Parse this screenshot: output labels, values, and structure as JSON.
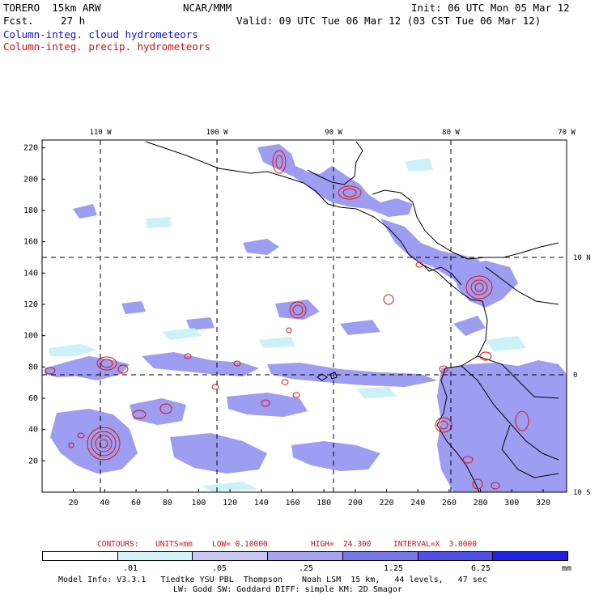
{
  "header": {
    "model_label": "TORERO  15km ARW",
    "forecast_label": "Fcst.",
    "forecast_hours": "27 h",
    "center": "NCAR/MMM",
    "init": "Init: 06 UTC Mon 05 Mar 12",
    "valid": "Valid: 09 UTC Tue 06 Mar 12 (03 CST Tue 06 Mar 12)"
  },
  "fields": {
    "cloud": "Column-integ. cloud hydrometeors",
    "precip": "Column-integ. precip. hydrometeors"
  },
  "colors": {
    "cloud_fill": "#8c8cf0",
    "cloud_light": "#c8f0f8",
    "cloud_mid": "#aaaaf0",
    "cloud_dark": "#6464e6",
    "contour": "#e01010",
    "coast": "#000000"
  },
  "map": {
    "lon_labels": [
      "110 W",
      "100 W",
      "90 W",
      "80 W",
      "70 W"
    ],
    "lat_labels": [
      "10 N",
      "0",
      "10 S"
    ],
    "y_ticks": [
      "20",
      "40",
      "60",
      "80",
      "100",
      "120",
      "140",
      "160",
      "180",
      "200",
      "220"
    ],
    "x_ticks": [
      "20",
      "40",
      "60",
      "80",
      "100",
      "120",
      "140",
      "160",
      "180",
      "200",
      "220",
      "240",
      "260",
      "280",
      "300",
      "320"
    ]
  },
  "contour_info": {
    "label": "CONTOURS:",
    "units": "UNITS=mm",
    "low": "LOW= 0.10000",
    "high": "HIGH=  24.300",
    "interval": "INTERVAL=X  3.0000"
  },
  "colorbar": {
    "labels": [
      ".01",
      ".05",
      ".25",
      "1.25",
      "6.25"
    ],
    "unit": "mm",
    "colors": [
      "#ffffff",
      "#d4f4fa",
      "#c8c8f4",
      "#a4a4f0",
      "#7878ec",
      "#5050e8",
      "#2020e0"
    ]
  },
  "footer": {
    "line1": "Model Info: V3.3.1   Tiedtke YSU PBL  Thompson    Noah LSM  15 km,   44 levels,   47 sec",
    "line2": "LW: Godd SW: Goddard DIFF: simple KM: 2D Smagor"
  }
}
